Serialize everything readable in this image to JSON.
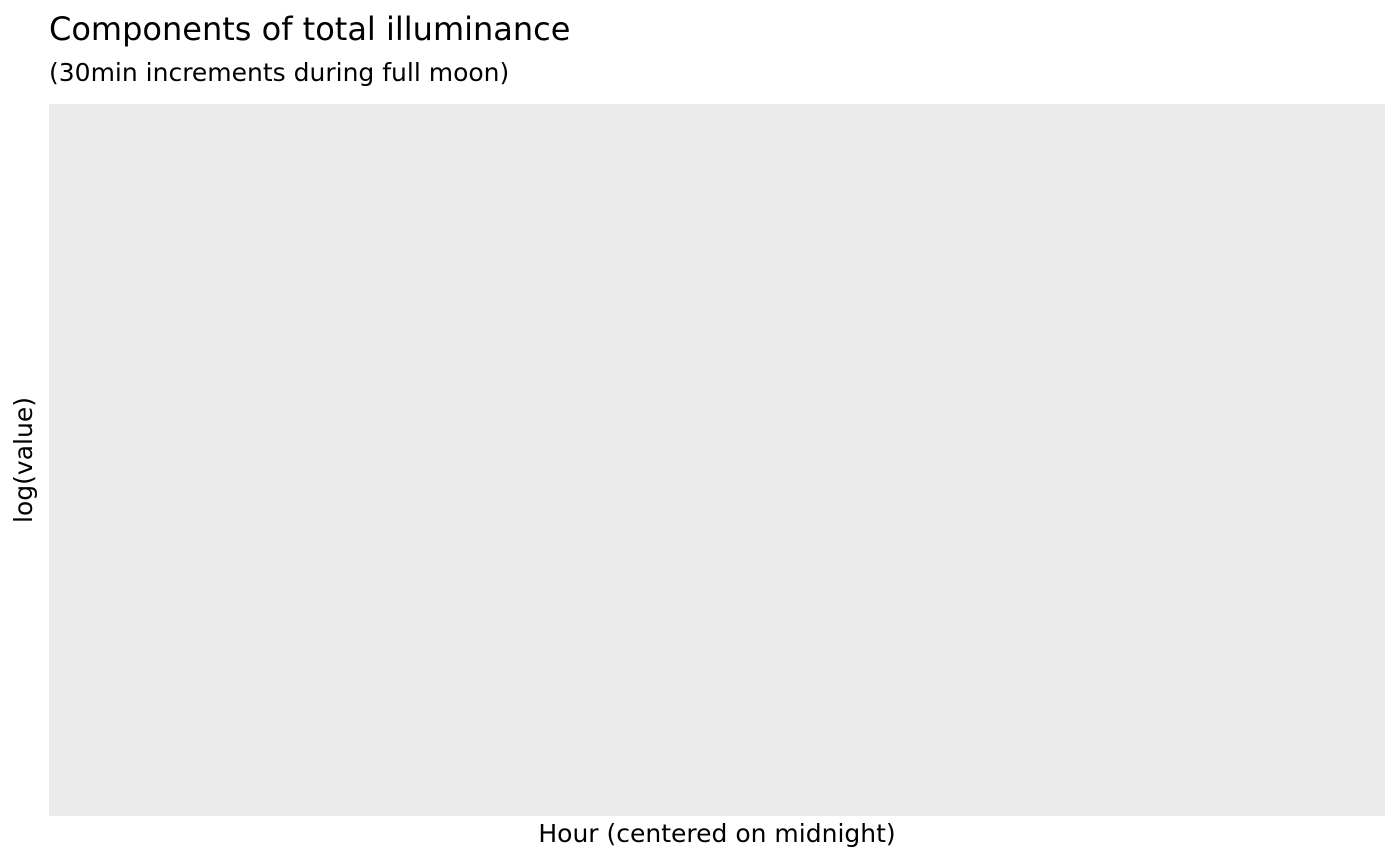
{
  "chart_data": {
    "type": "line",
    "title": "Components of total illuminance",
    "subtitle": "(30min increments during full moon)",
    "xlabel": "Hour (centered on midnight)",
    "ylabel": "log(value)",
    "series": [],
    "grid": false,
    "colors": {
      "panel_background": "#ebebeb",
      "page_background": "#ffffff"
    }
  }
}
